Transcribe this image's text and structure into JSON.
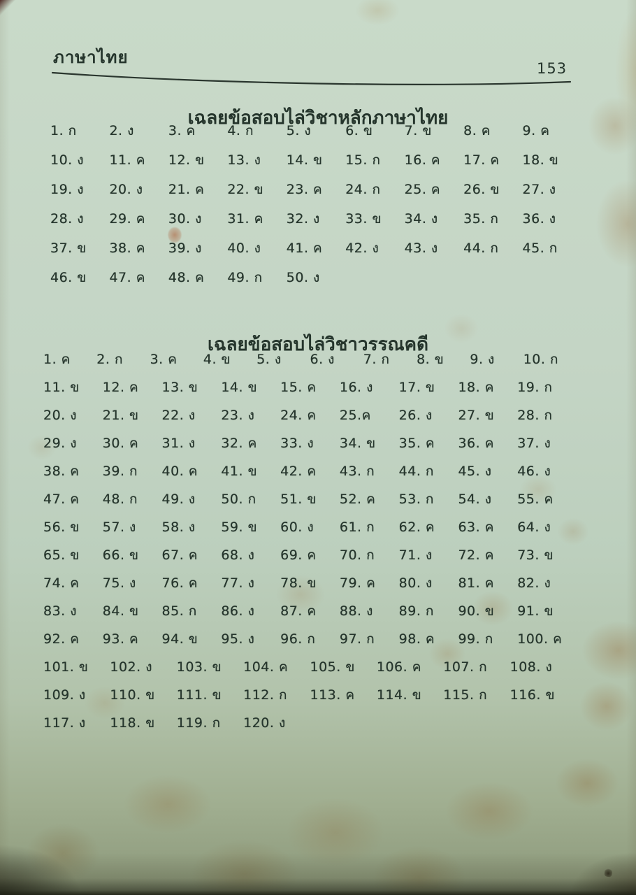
{
  "page": {
    "header_label": "ภาษาไทย",
    "page_number": "153"
  },
  "sections": [
    {
      "title": "เฉลยข้อสอบไล่วิชาหลักภาษาไทย",
      "rows": [
        [
          "1. ก",
          "2. ง",
          "3. ค",
          "4. ก",
          "5. ง",
          "6. ข",
          "7. ข",
          "8. ค",
          "9. ค"
        ],
        [
          "10. ง",
          "11. ค",
          "12. ข",
          "13. ง",
          "14. ข",
          "15. ก",
          "16. ค",
          "17. ค",
          "18. ข"
        ],
        [
          "19. ง",
          "20. ง",
          "21. ค",
          "22. ข",
          "23. ค",
          "24. ก",
          "25. ค",
          "26. ข",
          "27. ง"
        ],
        [
          "28. ง",
          "29. ค",
          "30. ง",
          "31. ค",
          "32. ง",
          "33. ข",
          "34. ง",
          "35. ก",
          "36. ง"
        ],
        [
          "37. ข",
          "38. ค",
          "39. ง",
          "40. ง",
          "41. ค",
          "42. ง",
          "43. ง",
          "44. ก",
          "45. ก"
        ],
        [
          "46. ข",
          "47. ค",
          "48. ค",
          "49. ก",
          "50. ง"
        ]
      ]
    },
    {
      "title": "เฉลยข้อสอบไล่วิชาวรรณคดี",
      "rows": [
        [
          "1. ค",
          "2. ก",
          "3. ค",
          "4. ข",
          "5. ง",
          "6. ง",
          "7. ก",
          "8. ข",
          "9. ง",
          "10. ก"
        ],
        [
          "11. ข",
          "12. ค",
          "13. ข",
          "14. ข",
          "15. ค",
          "16. ง",
          "17. ข",
          "18. ค",
          "19. ก"
        ],
        [
          "20. ง",
          "21. ข",
          "22. ง",
          "23. ง",
          "24. ค",
          "25.ค",
          "26. ง",
          "27. ข",
          "28. ก"
        ],
        [
          "29. ง",
          "30. ค",
          "31. ง",
          "32. ค",
          "33. ง",
          "34. ข",
          "35. ค",
          "36. ค",
          "37. ง"
        ],
        [
          "38. ค",
          "39. ก",
          "40. ค",
          "41. ข",
          "42. ค",
          "43. ก",
          "44. ก",
          "45. ง",
          "46. ง"
        ],
        [
          "47. ค",
          "48. ก",
          "49. ง",
          "50. ก",
          "51. ข",
          "52. ค",
          "53. ก",
          "54. ง",
          "55. ค"
        ],
        [
          "56. ข",
          "57. ง",
          "58. ง",
          "59. ข",
          "60. ง",
          "61. ก",
          "62. ค",
          "63. ค",
          "64. ง"
        ],
        [
          "65. ข",
          "66. ข",
          "67. ค",
          "68. ง",
          "69. ค",
          "70. ก",
          "71. ง",
          "72. ค",
          "73. ข"
        ],
        [
          "74. ค",
          "75. ง",
          "76. ค",
          "77. ง",
          "78. ข",
          "79. ค",
          "80. ง",
          "81. ค",
          "82. ง"
        ],
        [
          "83. ง",
          "84. ข",
          "85. ก",
          "86. ง",
          "87. ค",
          "88. ง",
          "89. ก",
          "90. ข",
          "91. ข"
        ],
        [
          "92. ค",
          "93. ค",
          "94. ข",
          "95. ง",
          "96. ก",
          "97. ก",
          "98. ค",
          "99. ก",
          "100. ค"
        ],
        [
          "101. ข",
          "102. ง",
          "103. ข",
          "104. ค",
          "105. ข",
          "106. ค",
          "107. ก",
          "108. ง"
        ],
        [
          "109. ง",
          "110. ข",
          "111. ข",
          "112. ก",
          "113. ค",
          "114. ข",
          "115. ก",
          "116. ข"
        ],
        [
          "117. ง",
          "118. ข",
          "119. ก",
          "120. ง"
        ]
      ]
    }
  ],
  "colors": {
    "paper": "#c3d4c4",
    "paper_bottom": "#8b9779",
    "ink": "#25352c",
    "stain": "#967040"
  }
}
